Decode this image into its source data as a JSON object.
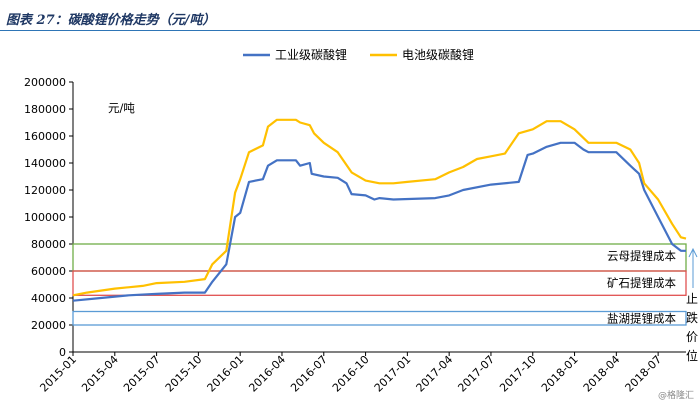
{
  "title": "图表 27：碳酸锂价格走势（元/吨）",
  "watermark": "@格隆汇",
  "side_note": "止跌价位",
  "colors": {
    "industrial": "#4472c4",
    "battery": "#ffc000",
    "mica": "#70ad47",
    "ore": "#e05050",
    "brine": "#5b9bd5"
  },
  "chart_data": {
    "type": "line",
    "unit_label": "元/吨",
    "ylim": [
      0,
      200000
    ],
    "yticks": [
      0,
      20000,
      40000,
      60000,
      80000,
      100000,
      120000,
      140000,
      160000,
      180000,
      200000
    ],
    "xticks": [
      "2015-01",
      "2015-04",
      "2015-07",
      "2015-10",
      "2016-01",
      "2016-04",
      "2016-07",
      "2016-10",
      "2017-01",
      "2017-04",
      "2017-07",
      "2017-10",
      "2018-01",
      "2018-04",
      "2018-07"
    ],
    "x_range": [
      "2015-01",
      "2018-09"
    ],
    "legend": [
      "工业级碳酸锂",
      "电池级碳酸锂"
    ],
    "series": [
      {
        "name": "工业级碳酸锂",
        "color": "#4472c4",
        "points": [
          [
            "2015-01",
            38000
          ],
          [
            "2015-03",
            40000
          ],
          [
            "2015-05",
            42000
          ],
          [
            "2015-07",
            43000
          ],
          [
            "2015-09",
            44000
          ],
          [
            "2015-10-15",
            44000
          ],
          [
            "2015-11",
            52000
          ],
          [
            "2015-12",
            65000
          ],
          [
            "2015-12-20",
            100000
          ],
          [
            "2016-01",
            103000
          ],
          [
            "2016-01-20",
            126000
          ],
          [
            "2016-02-20",
            128000
          ],
          [
            "2016-03",
            138000
          ],
          [
            "2016-03-20",
            142000
          ],
          [
            "2016-05",
            142000
          ],
          [
            "2016-05-10",
            138000
          ],
          [
            "2016-06",
            140000
          ],
          [
            "2016-06-05",
            132000
          ],
          [
            "2016-07",
            130000
          ],
          [
            "2016-08",
            129000
          ],
          [
            "2016-08-20",
            125000
          ],
          [
            "2016-09",
            117000
          ],
          [
            "2016-10",
            116000
          ],
          [
            "2016-10-20",
            113000
          ],
          [
            "2016-11",
            114000
          ],
          [
            "2016-12",
            113000
          ],
          [
            "2017-03",
            114000
          ],
          [
            "2017-04",
            116000
          ],
          [
            "2017-05",
            120000
          ],
          [
            "2017-07",
            124000
          ],
          [
            "2017-09",
            126000
          ],
          [
            "2017-09-20",
            146000
          ],
          [
            "2017-10",
            147000
          ],
          [
            "2017-11",
            152000
          ],
          [
            "2017-12",
            155000
          ],
          [
            "2018-01",
            155000
          ],
          [
            "2018-01-20",
            150000
          ],
          [
            "2018-02",
            148000
          ],
          [
            "2018-04",
            148000
          ],
          [
            "2018-05",
            138000
          ],
          [
            "2018-05-20",
            132000
          ],
          [
            "2018-06",
            120000
          ],
          [
            "2018-07",
            100000
          ],
          [
            "2018-08",
            80000
          ],
          [
            "2018-08-20",
            75000
          ],
          [
            "2018-09",
            75000
          ]
        ]
      },
      {
        "name": "电池级碳酸锂",
        "color": "#ffc000",
        "points": [
          [
            "2015-01",
            42000
          ],
          [
            "2015-02",
            44000
          ],
          [
            "2015-04",
            47000
          ],
          [
            "2015-06",
            49000
          ],
          [
            "2015-07",
            51000
          ],
          [
            "2015-09",
            52000
          ],
          [
            "2015-10-15",
            54000
          ],
          [
            "2015-11",
            65000
          ],
          [
            "2015-12",
            75000
          ],
          [
            "2015-12-20",
            118000
          ],
          [
            "2016-01",
            128000
          ],
          [
            "2016-01-20",
            148000
          ],
          [
            "2016-02-20",
            153000
          ],
          [
            "2016-03",
            167000
          ],
          [
            "2016-03-20",
            172000
          ],
          [
            "2016-05",
            172000
          ],
          [
            "2016-05-10",
            170000
          ],
          [
            "2016-06",
            168000
          ],
          [
            "2016-06-10",
            162000
          ],
          [
            "2016-07",
            155000
          ],
          [
            "2016-08",
            148000
          ],
          [
            "2016-09",
            133000
          ],
          [
            "2016-10",
            127000
          ],
          [
            "2016-11",
            125000
          ],
          [
            "2016-12",
            125000
          ],
          [
            "2017-01",
            126000
          ],
          [
            "2017-03",
            128000
          ],
          [
            "2017-04",
            133000
          ],
          [
            "2017-05",
            137000
          ],
          [
            "2017-06",
            143000
          ],
          [
            "2017-07",
            145000
          ],
          [
            "2017-08",
            147000
          ],
          [
            "2017-09",
            162000
          ],
          [
            "2017-10",
            165000
          ],
          [
            "2017-11",
            171000
          ],
          [
            "2017-12",
            171000
          ],
          [
            "2018-01",
            165000
          ],
          [
            "2018-02",
            155000
          ],
          [
            "2018-04",
            155000
          ],
          [
            "2018-05",
            150000
          ],
          [
            "2018-05-20",
            140000
          ],
          [
            "2018-06",
            125000
          ],
          [
            "2018-07",
            113000
          ],
          [
            "2018-08",
            95000
          ],
          [
            "2018-08-20",
            85000
          ],
          [
            "2018-09",
            84000
          ]
        ]
      }
    ],
    "reference_bands": [
      {
        "label": "云母提锂成本",
        "from": 60000,
        "to": 80000,
        "color": "#70ad47"
      },
      {
        "label": "矿石提锂成本",
        "from": 42000,
        "to": 60000,
        "color": "#e05050"
      },
      {
        "label": "盐湖提锂成本",
        "from": 20000,
        "to": 30000,
        "color": "#5b9bd5"
      }
    ]
  }
}
